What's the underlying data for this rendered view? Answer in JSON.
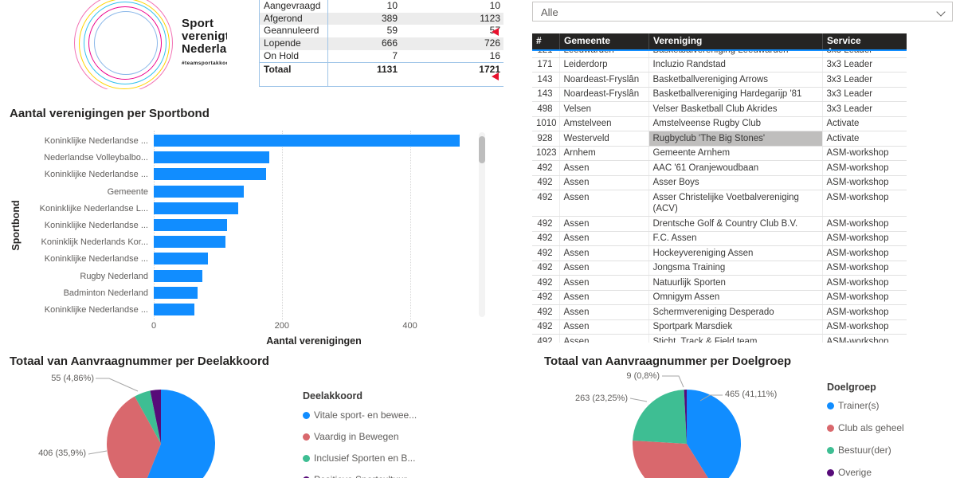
{
  "logo": {
    "line1": "Sport",
    "line2": "verenigt",
    "line3": "Nederland",
    "tagline": "#teamsportakkoord"
  },
  "filter": {
    "value": "Alle"
  },
  "colors": {
    "accent_blue": "#118DFF",
    "rose": "#D9686D",
    "green": "#3EBE93",
    "purple": "#570B79",
    "header_bg": "#252423",
    "text_dark": "#252423",
    "text_gray": "#605E5C",
    "grid_blue": "#9FC5E8",
    "highlight_gray": "#BFBEBD",
    "red_marker": "#E8112D"
  },
  "services_table": {
    "columns": [
      "#",
      "Gemeente",
      "Vereniging",
      "Service"
    ],
    "sorted_by": "Service",
    "sort_direction": "ascending",
    "rows": [
      {
        "num": "121",
        "gemeente": "Leeuwarden",
        "vereniging": "Basketbalvereniging Leeuwarden",
        "service": "3x3 Leader"
      },
      {
        "num": "171",
        "gemeente": "Leiderdorp",
        "vereniging": "Incluzio Randstad",
        "service": "3x3 Leader"
      },
      {
        "num": "143",
        "gemeente": "Noardeast-Fryslân",
        "vereniging": "Basketballvereniging Arrows",
        "service": "3x3 Leader"
      },
      {
        "num": "143",
        "gemeente": "Noardeast-Fryslân",
        "vereniging": "Basketballvereniging Hardegarijp '81",
        "service": "3x3 Leader"
      },
      {
        "num": "498",
        "gemeente": "Velsen",
        "vereniging": "Velser Basketball Club Akrides",
        "service": "3x3 Leader"
      },
      {
        "num": "1010",
        "gemeente": "Amstelveen",
        "vereniging": "Amstelveense Rugby Club",
        "service": "Activate"
      },
      {
        "num": "928",
        "gemeente": "Westerveld",
        "vereniging": "Rugbyclub 'The Big Stones'",
        "service": "Activate",
        "highlight": true
      },
      {
        "num": "1023",
        "gemeente": "Arnhem",
        "vereniging": "Gemeente Arnhem",
        "service": "ASM-workshop"
      },
      {
        "num": "492",
        "gemeente": "Assen",
        "vereniging": "AAC '61 Oranjewoudbaan",
        "service": "ASM-workshop"
      },
      {
        "num": "492",
        "gemeente": "Assen",
        "vereniging": "Asser Boys",
        "service": "ASM-workshop"
      },
      {
        "num": "492",
        "gemeente": "Assen",
        "vereniging": "Asser Christelijke Voetbalvereniging (ACV)",
        "service": "ASM-workshop"
      },
      {
        "num": "492",
        "gemeente": "Assen",
        "vereniging": "Drentsche Golf & Country Club B.V.",
        "service": "ASM-workshop"
      },
      {
        "num": "492",
        "gemeente": "Assen",
        "vereniging": "F.C. Assen",
        "service": "ASM-workshop"
      },
      {
        "num": "492",
        "gemeente": "Assen",
        "vereniging": "Hockeyvereniging Assen",
        "service": "ASM-workshop"
      },
      {
        "num": "492",
        "gemeente": "Assen",
        "vereniging": "Jongsma Training",
        "service": "ASM-workshop"
      },
      {
        "num": "492",
        "gemeente": "Assen",
        "vereniging": "Natuurlijk Sporten",
        "service": "ASM-workshop"
      },
      {
        "num": "492",
        "gemeente": "Assen",
        "vereniging": "Omnigym Assen",
        "service": "ASM-workshop"
      },
      {
        "num": "492",
        "gemeente": "Assen",
        "vereniging": "Schermvereniging Desperado",
        "service": "ASM-workshop"
      },
      {
        "num": "492",
        "gemeente": "Assen",
        "vereniging": "Sportpark Marsdiek",
        "service": "ASM-workshop"
      },
      {
        "num": "492",
        "gemeente": "Assen",
        "vereniging": "Sticht. Track & Field team Drenthe/Groningen",
        "service": "ASM-workshop"
      }
    ]
  },
  "chart_data": [
    {
      "type": "table",
      "title": "Status totals",
      "columns": [
        "Status",
        "Aantal",
        "Totaal"
      ],
      "rows": [
        [
          "Aangevraagd",
          "10",
          "10"
        ],
        [
          "Afgerond",
          "389",
          "1123"
        ],
        [
          "Geannuleerd",
          "59",
          "57"
        ],
        [
          "Lopende",
          "666",
          "726"
        ],
        [
          "On Hold",
          "7",
          "16"
        ],
        [
          "Totaal",
          "1131",
          "1721"
        ]
      ]
    },
    {
      "type": "bar",
      "orientation": "horizontal",
      "title": "Aantal verenigingen per Sportbond",
      "xlabel": "Aantal verenigingen",
      "ylabel": "Sportbond",
      "xlim": [
        0,
        500
      ],
      "xticks": [
        0,
        200,
        400
      ],
      "grid": "dotted-vertical",
      "bar_color": "#118DFF",
      "categories": [
        "Koninklijke Nederlandse ...",
        "Nederlandse Volleybalbo...",
        "Koninklijke Nederlandse ...",
        "Gemeente",
        "Koninklijke Nederlandse L...",
        "Koninklijke Nederlandse ...",
        "Koninklijk Nederlands Kor...",
        "Koninklijke Nederlandse ...",
        "Rugby Nederland",
        "Badminton Nederland",
        "Koninklijke Nederlandse ..."
      ],
      "values": [
        477,
        180,
        175,
        141,
        132,
        115,
        112,
        85,
        76,
        69,
        63
      ]
    },
    {
      "type": "pie",
      "title": "Totaal van Aanvraagnummer per Deelakkoord",
      "legend_title": "Deelakkoord",
      "legend_position": "right",
      "labels": [
        "Vitale sport- en bewee...",
        "Vaardig in Bewegen",
        "Inclusief Sporten en B...",
        "Positieve Sportcultuur"
      ],
      "values": [
        634,
        406,
        55,
        36
      ],
      "colors": [
        "#118DFF",
        "#D9686D",
        "#3EBE93",
        "#570B79"
      ],
      "data_labels": [
        "",
        "406 (35,9%)",
        "55 (4,86%)",
        ""
      ]
    },
    {
      "type": "pie",
      "title": "Totaal van Aanvraagnummer per Doelgroep",
      "legend_title": "Doelgroep",
      "legend_position": "right",
      "labels": [
        "Trainer(s)",
        "Club als geheel",
        "Bestuur(der)",
        "Overige"
      ],
      "values": [
        465,
        394,
        263,
        9
      ],
      "colors": [
        "#118DFF",
        "#D9686D",
        "#3EBE93",
        "#570B79"
      ],
      "data_labels": [
        "465 (41,11%)",
        "",
        "263 (23,25%)",
        "9 (0,8%)"
      ]
    }
  ]
}
